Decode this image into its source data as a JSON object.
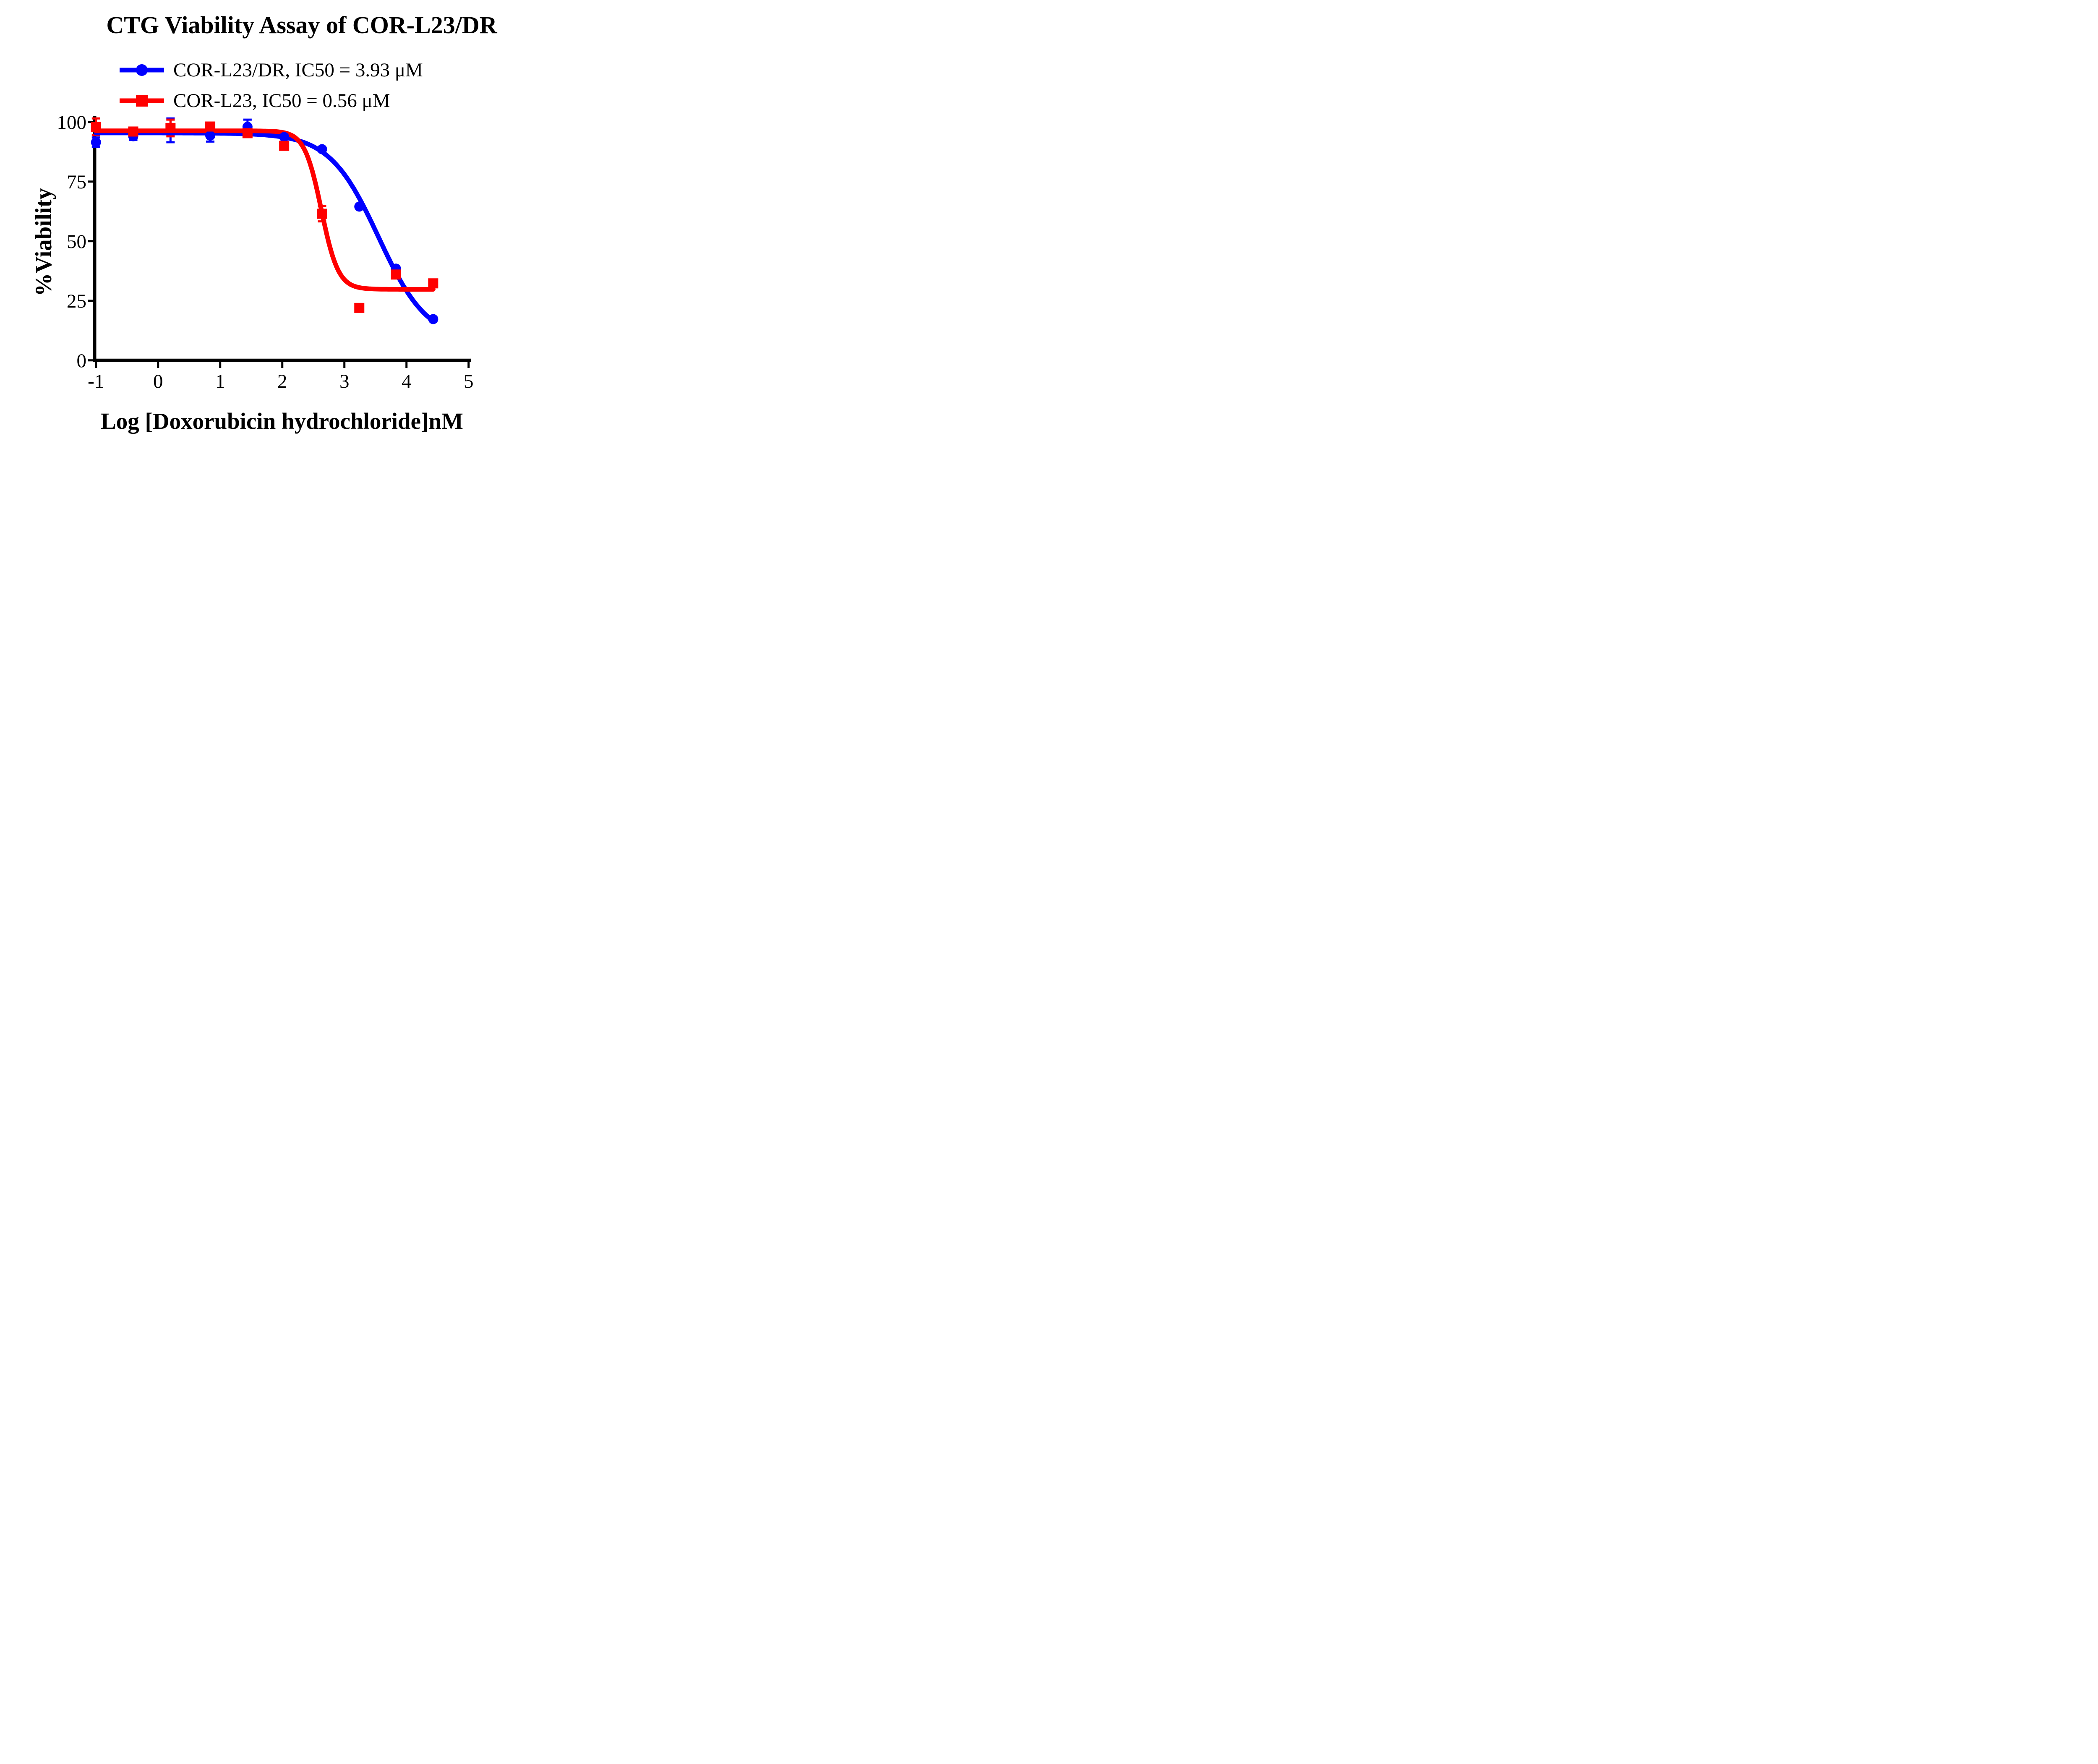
{
  "title": "CTG Viability Assay of COR-L23/DR",
  "legend": {
    "entries": [
      {
        "label": "COR-L23/DR, IC50 = 3.93 μM",
        "marker": "circle",
        "color": "#0000ff"
      },
      {
        "label": "COR-L23, IC50 = 0.56 μM",
        "marker": "square",
        "color": "#ff0000"
      }
    ]
  },
  "chart_data": {
    "type": "scatter",
    "title": "CTG Viability Assay of COR-L23/DR",
    "xlabel": "Log [Doxorubicin hydrochloride]nM",
    "ylabel": "%Viability",
    "xlim": [
      -1,
      5
    ],
    "ylim": [
      0,
      100
    ],
    "grid": false,
    "legend_position": "top-left",
    "colors": {
      "axis": "#000000",
      "blue": "#0000ff",
      "red": "#ff0000"
    },
    "x_ticks": [
      {
        "v": -1,
        "label": "-1"
      },
      {
        "v": 0,
        "label": "0"
      },
      {
        "v": 1,
        "label": "1"
      },
      {
        "v": 2,
        "label": "2"
      },
      {
        "v": 3,
        "label": "3"
      },
      {
        "v": 4,
        "label": "4"
      },
      {
        "v": 5,
        "label": "5"
      }
    ],
    "y_ticks": [
      {
        "v": 0,
        "label": "0"
      },
      {
        "v": 25,
        "label": "25"
      },
      {
        "v": 50,
        "label": "50"
      },
      {
        "v": 75,
        "label": "75"
      },
      {
        "v": 100,
        "label": "100"
      }
    ],
    "series": [
      {
        "name": "COR-L23/DR",
        "ic50": "3.93 μM",
        "color": "#0000ff",
        "marker": "circle",
        "x": [
          -1.0,
          -0.4,
          0.2,
          0.84,
          1.44,
          2.03,
          2.64,
          3.24,
          3.83,
          4.43
        ],
        "y": [
          91.5,
          94.0,
          96.5,
          94.3,
          98.0,
          93.7,
          88.6,
          64.5,
          38.5,
          17.3
        ],
        "yerr": [
          2.0,
          1.5,
          5.0,
          2.5,
          3.0,
          0,
          0,
          0,
          0,
          0
        ],
        "fit": {
          "top": 95.4,
          "bottom": 8.0,
          "logIC50": 3.55,
          "hill": 1.1,
          "xmin": -1.0,
          "xmax": 4.45
        }
      },
      {
        "name": "COR-L23",
        "ic50": "0.56 μM",
        "color": "#ff0000",
        "marker": "square",
        "x": [
          -1.0,
          -0.4,
          0.2,
          0.84,
          1.44,
          2.03,
          2.64,
          3.24,
          3.83,
          4.43
        ],
        "y": [
          98.0,
          96.0,
          97.5,
          98.1,
          95.3,
          90.0,
          61.5,
          22.0,
          36.0,
          32.3
        ],
        "yerr": [
          3.5,
          1.5,
          3.5,
          0,
          0,
          0,
          3.2,
          0,
          0,
          0
        ],
        "fit": {
          "top": 96.3,
          "bottom": 29.8,
          "logIC50": 2.63,
          "hill": 3.2,
          "xmin": -1.0,
          "xmax": 4.45
        }
      }
    ]
  }
}
